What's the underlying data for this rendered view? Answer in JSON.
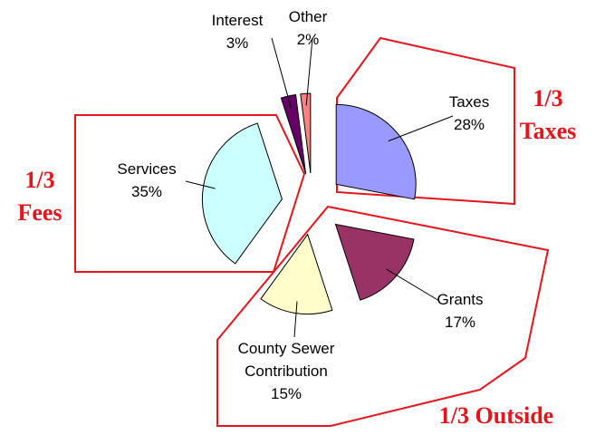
{
  "chart_data": {
    "type": "pie",
    "categories": [
      "Taxes",
      "Grants",
      "County Sewer Contribution",
      "Services",
      "Interest",
      "Other"
    ],
    "values": [
      28,
      17,
      15,
      35,
      3,
      2
    ],
    "value_labels": [
      "28%",
      "17%",
      "15%",
      "35%",
      "3%",
      "2%"
    ],
    "colors": [
      "#9999ff",
      "#993366",
      "#ffffcc",
      "#ccffff",
      "#660066",
      "#ff8080"
    ],
    "annotations": [
      [
        "1/3",
        "Taxes"
      ],
      [
        "1/3",
        "Fees"
      ],
      [
        "1/3 Outside"
      ]
    ]
  }
}
